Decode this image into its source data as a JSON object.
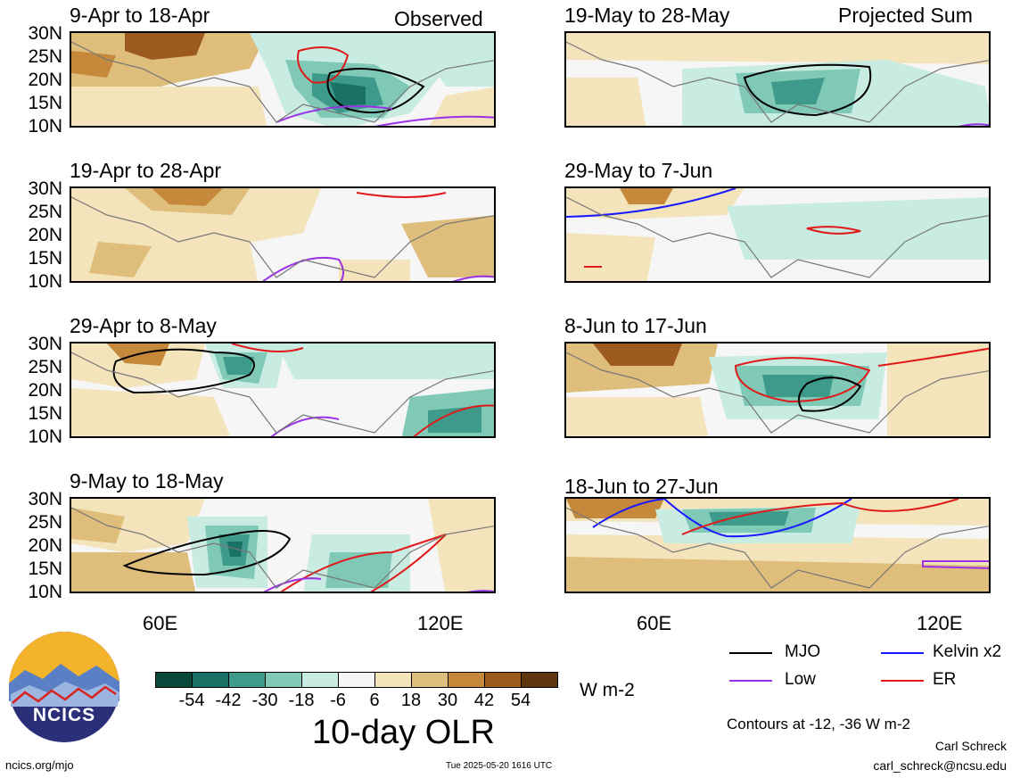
{
  "panels": {
    "observed": [
      {
        "title": "9-Apr to 18-Apr",
        "label": "Observed"
      },
      {
        "title": "19-Apr to 28-Apr"
      },
      {
        "title": "29-Apr to 8-May"
      },
      {
        "title": "9-May to 18-May"
      }
    ],
    "projected": [
      {
        "title": "19-May to 28-May",
        "label": "Projected Sum"
      },
      {
        "title": "29-May to 7-Jun"
      },
      {
        "title": "8-Jun to 17-Jun"
      },
      {
        "title": "18-Jun to 27-Jun"
      }
    ]
  },
  "axes": {
    "lat_ticks": [
      "30N",
      "25N",
      "20N",
      "15N",
      "10N"
    ],
    "lon_ticks": [
      "60E",
      "120E"
    ]
  },
  "colorbar": {
    "ticks": [
      "-54",
      "-42",
      "-30",
      "-18",
      "-6",
      "6",
      "18",
      "30",
      "42",
      "54"
    ],
    "units": "W m-2",
    "colors": [
      "#0a4a3c",
      "#1a7266",
      "#3e9a8a",
      "#7fc9b6",
      "#c8ebe2",
      "#f6f6f6",
      "#f4e4bb",
      "#dfbd7a",
      "#c6893c",
      "#9c5a1e",
      "#5f3510"
    ]
  },
  "title": "10-day OLR",
  "legend": {
    "items": [
      {
        "label": "MJO",
        "color": "#000000"
      },
      {
        "label": "Kelvin x2",
        "color": "#1a1aff"
      },
      {
        "label": "Low",
        "color": "#9a30e8"
      },
      {
        "label": "ER",
        "color": "#e01a1a"
      }
    ],
    "contours_note": "Contours at -12, -36 W m-2"
  },
  "logo": {
    "text": "NCICS"
  },
  "footer": {
    "url": "ncics.org/mjo",
    "timestamp": "Tue 2025-05-20 1616 UTC",
    "author": "Carl Schreck",
    "email": "carl_schreck@ncsu.edu"
  }
}
